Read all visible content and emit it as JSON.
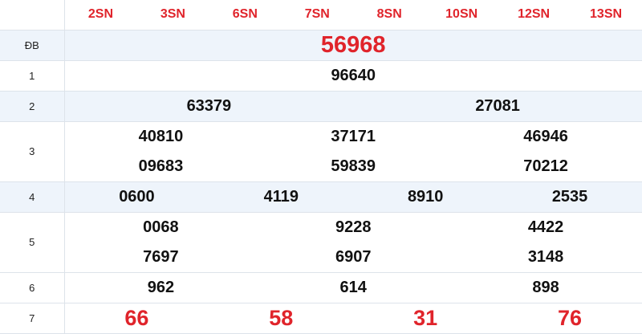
{
  "header": [
    "2SN",
    "3SN",
    "6SN",
    "7SN",
    "8SN",
    "10SN",
    "12SN",
    "13SN"
  ],
  "accent": "#e0242b",
  "rows": {
    "db": {
      "label": "ĐB",
      "values": [
        "56968"
      ]
    },
    "g1": {
      "label": "1",
      "values": [
        "96640"
      ]
    },
    "g2": {
      "label": "2",
      "values": [
        "63379",
        "27081"
      ]
    },
    "g3": {
      "label": "3",
      "values": [
        "40810",
        "37171",
        "46946",
        "09683",
        "59839",
        "70212"
      ]
    },
    "g4": {
      "label": "4",
      "values": [
        "0600",
        "4119",
        "8910",
        "2535"
      ]
    },
    "g5": {
      "label": "5",
      "values": [
        "0068",
        "9228",
        "4422",
        "7697",
        "6907",
        "3148"
      ]
    },
    "g6": {
      "label": "6",
      "values": [
        "962",
        "614",
        "898"
      ]
    },
    "g7": {
      "label": "7",
      "values": [
        "66",
        "58",
        "31",
        "76"
      ]
    }
  }
}
